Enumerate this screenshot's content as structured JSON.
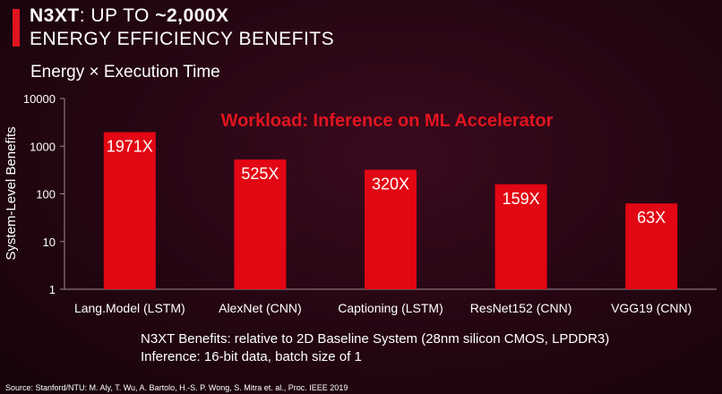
{
  "header": {
    "brand": "N3XT",
    "title_rest": ": UP TO ",
    "title_highlight": "~2,000X",
    "line2": "ENERGY EFFICIENCY BENEFITS"
  },
  "subtitle": "Energy × Execution Time",
  "chart_data": {
    "type": "bar",
    "scale": "log",
    "ylim": [
      1,
      10000
    ],
    "yticks": [
      "1",
      "10",
      "100",
      "1000",
      "10000"
    ],
    "ylabel": "System-Level Benefits",
    "annotation": "Workload: Inference on ML Accelerator",
    "categories": [
      "Lang.Model (LSTM)",
      "AlexNet (CNN)",
      "Captioning (LSTM)",
      "ResNet152 (CNN)",
      "VGG19 (CNN)"
    ],
    "values": [
      1971,
      525,
      320,
      159,
      63
    ],
    "data_labels": [
      "1971X",
      "525X",
      "320X",
      "159X",
      "63X"
    ],
    "bar_color": "#e30613",
    "annotation_color": "#e0151f"
  },
  "notes": [
    "N3XT Benefits: relative to 2D Baseline System (28nm silicon CMOS, LPDDR3)",
    "Inference: 16-bit data, batch size of 1"
  ],
  "source": "Source: Stanford/NTU: M. Aly,  T. Wu, A. Bartolo, H.-S. P. Wong,  S. Mitra et. al., Proc. IEEE 2019"
}
